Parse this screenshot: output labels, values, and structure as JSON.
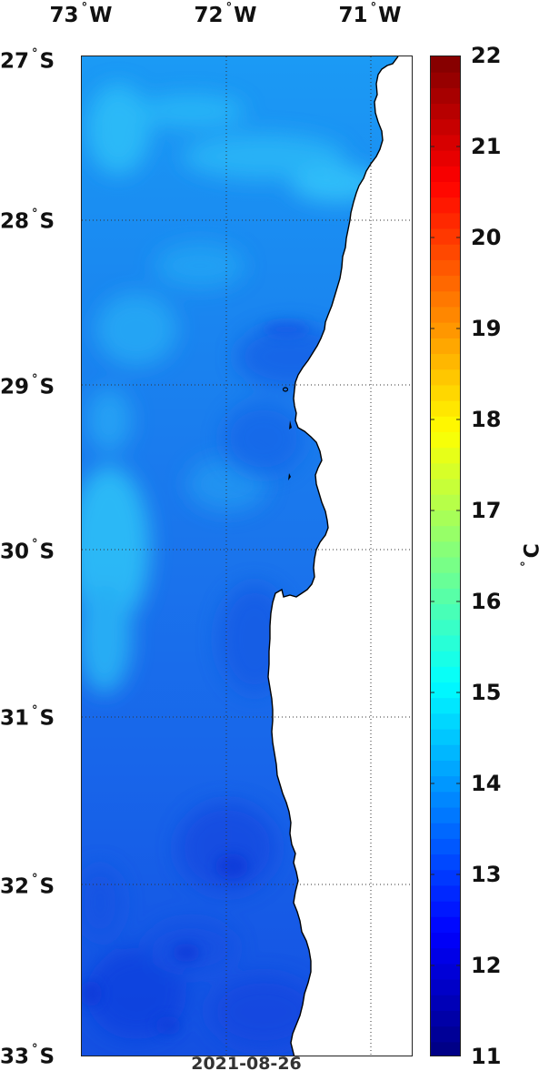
{
  "map": {
    "type": "sea surface temperature map",
    "longitude_labels": [
      {
        "value": "73",
        "hemisphere": "W",
        "deg_mark": "°"
      },
      {
        "value": "72",
        "hemisphere": "W",
        "deg_mark": "°"
      },
      {
        "value": "71",
        "hemisphere": "W",
        "deg_mark": "°"
      }
    ],
    "latitude_labels": [
      {
        "value": "27",
        "hemisphere": "S",
        "deg_mark": "°"
      },
      {
        "value": "28",
        "hemisphere": "S",
        "deg_mark": "°"
      },
      {
        "value": "29",
        "hemisphere": "S",
        "deg_mark": "°"
      },
      {
        "value": "30",
        "hemisphere": "S",
        "deg_mark": "°"
      },
      {
        "value": "31",
        "hemisphere": "S",
        "deg_mark": "°"
      },
      {
        "value": "32",
        "hemisphere": "S",
        "deg_mark": "°"
      },
      {
        "value": "33",
        "hemisphere": "S",
        "deg_mark": "°"
      }
    ],
    "longitude_range": [
      -73.0,
      -70.7
    ],
    "latitude_range": [
      -33.0,
      -27.0
    ],
    "gridlines": "dotted",
    "land_color": "#ffffff",
    "coastline_color": "#000000",
    "date": "2021-08-26"
  },
  "colorbar": {
    "ticks": [
      "22",
      "21",
      "20",
      "19",
      "18",
      "17",
      "16",
      "15",
      "14",
      "13",
      "12",
      "11"
    ],
    "min": 11,
    "max": 22,
    "colormap": "jet",
    "placement": "right",
    "unit_deg": "°",
    "unit": "C"
  }
}
